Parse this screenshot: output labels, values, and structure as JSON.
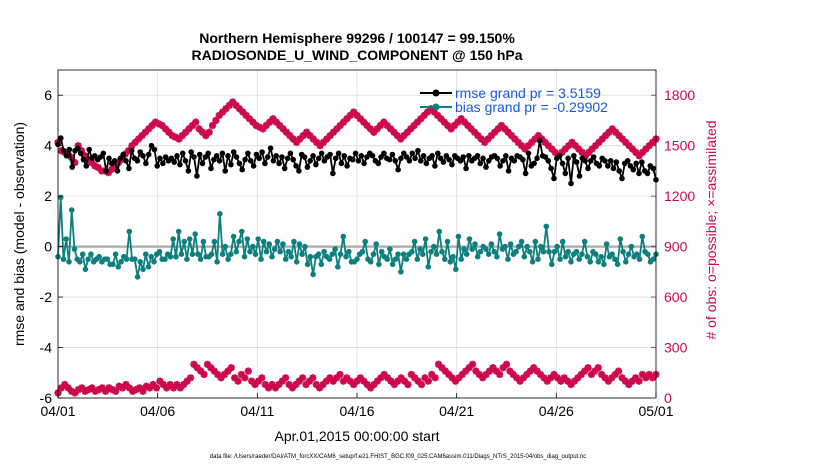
{
  "chart_data": {
    "type": "line",
    "title": "Northern Hemisphere 99296 / 100147 = 99.150%",
    "subtitle": "RADIOSONDE_U_WIND_COMPONENT @ 150 hPa",
    "xlabel": "Apr.01,2015 00:00:00 start",
    "ylabel": "rmse and bias (model - observation)",
    "ylabel_right": "# of obs: o=possible; ×=assimilated",
    "ylim": [
      -6,
      7
    ],
    "ylim_right": [
      0,
      1950
    ],
    "xlim": [
      0,
      30
    ],
    "yticks": [
      "-6",
      "-4",
      "-2",
      "0",
      "2",
      "4",
      "6"
    ],
    "yticks_right": [
      "0",
      "300",
      "600",
      "900",
      "1200",
      "1500",
      "1800"
    ],
    "xticks": [
      "04/01",
      "04/06",
      "04/11",
      "04/16",
      "04/21",
      "04/26",
      "05/01"
    ],
    "legend": [
      {
        "label": "rmse grand pr = 3.5159",
        "color": "#000000"
      },
      {
        "label": "bias grand pr = -0.29902",
        "color": "#0e7f7f"
      }
    ],
    "colors": {
      "rmse": "#000000",
      "bias": "#0e7f7f",
      "obs": "#cc0a4d",
      "zero_line": "#aaaaaa"
    },
    "series": [
      {
        "name": "rmse",
        "values": [
          4.05,
          4.3,
          3.8,
          3.6,
          3.85,
          3.15,
          3.8,
          3.9,
          3.7,
          3.45,
          3.2,
          3.85,
          3.5,
          3.6,
          3.45,
          3.55,
          3.7,
          3.0,
          3.5,
          3.3,
          3.4,
          3.0,
          3.5,
          3.65,
          3.4,
          3.1,
          3.8,
          3.5,
          3.4,
          3.75,
          3.6,
          3.3,
          3.65,
          4.0,
          3.85,
          3.2,
          3.5,
          3.3,
          3.55,
          3.4,
          3.5,
          3.35,
          3.6,
          3.25,
          3.7,
          3.4,
          3.0,
          3.75,
          3.55,
          2.8,
          3.65,
          3.3,
          3.55,
          3.7,
          3.1,
          3.45,
          3.6,
          3.4,
          3.7,
          3.0,
          3.6,
          3.25,
          3.75,
          3.55,
          3.3,
          3.05,
          3.45,
          3.7,
          3.4,
          3.2,
          3.65,
          3.5,
          3.75,
          3.3,
          3.55,
          3.9,
          3.4,
          3.6,
          3.3,
          3.55,
          3.1,
          3.5,
          3.7,
          3.45,
          3.2,
          3.0,
          3.65,
          3.55,
          3.15,
          3.4,
          3.6,
          3.25,
          3.5,
          3.7,
          3.4,
          3.55,
          3.65,
          2.9,
          3.5,
          3.7,
          3.3,
          3.6,
          3.2,
          3.5,
          3.45,
          3.7,
          3.4,
          3.6,
          3.3,
          3.55,
          3.7,
          3.6,
          3.4,
          3.3,
          3.55,
          3.7,
          3.5,
          3.45,
          3.65,
          3.4,
          3.05,
          3.5,
          3.7,
          3.55,
          3.4,
          3.7,
          3.5,
          3.8,
          3.4,
          3.6,
          3.3,
          3.5,
          3.6,
          3.2,
          3.7,
          3.5,
          3.35,
          3.6,
          3.45,
          3.25,
          3.6,
          3.5,
          3.4,
          3.55,
          3.1,
          3.6,
          3.4,
          3.5,
          3.6,
          3.3,
          3.5,
          3.15,
          3.4,
          3.55,
          3.6,
          3.5,
          3.2,
          3.4,
          3.6,
          3.0,
          3.5,
          3.4,
          3.6,
          3.55,
          3.45,
          2.9,
          3.7,
          3.2,
          3.3,
          3.5,
          4.2,
          3.6,
          3.55,
          3.4,
          3.1,
          2.7,
          3.5,
          3.6,
          3.3,
          2.9,
          3.5,
          2.5,
          3.6,
          3.35,
          2.8,
          3.5,
          3.4,
          3.1,
          3.4,
          3.55,
          3.3,
          3.2,
          3.5,
          3.4,
          3.2,
          3.4,
          3.1,
          3.35,
          3.0,
          2.7,
          3.3,
          3.4,
          3.2,
          3.05,
          3.3,
          2.9,
          3.35,
          3.0,
          2.9,
          3.2,
          3.1,
          2.65
        ]
      },
      {
        "name": "bias",
        "values": [
          -0.4,
          1.95,
          -0.5,
          0.3,
          -0.6,
          1.45,
          -0.1,
          -0.5,
          -0.6,
          -0.3,
          -0.9,
          -0.5,
          -0.3,
          -0.6,
          -0.5,
          -0.4,
          -0.6,
          -0.5,
          -0.5,
          -0.7,
          -0.7,
          -0.3,
          -0.8,
          -0.6,
          -0.4,
          -0.5,
          0.6,
          -0.5,
          -0.5,
          -1.2,
          -0.6,
          -0.9,
          -0.3,
          -0.8,
          -0.4,
          -0.6,
          -0.3,
          -0.2,
          -0.5,
          -0.5,
          -0.3,
          -0.4,
          0.3,
          -0.4,
          0.6,
          -0.3,
          0.2,
          -0.5,
          0.3,
          -0.3,
          0.5,
          -0.3,
          -0.5,
          0.2,
          -0.4,
          -0.4,
          -0.3,
          0.2,
          -0.6,
          1.3,
          -0.3,
          0.0,
          -0.5,
          -0.3,
          0.4,
          -0.2,
          0.2,
          0.6,
          -0.4,
          0.3,
          -0.2,
          0.0,
          -0.3,
          0.3,
          -0.5,
          0.2,
          -0.2,
          0.1,
          -0.4,
          -0.1,
          0.2,
          -0.2,
          0.1,
          -0.5,
          -0.2,
          -0.4,
          0.2,
          -0.6,
          0.1,
          -0.3,
          0.0,
          -0.7,
          -0.4,
          -1.1,
          -0.4,
          -0.3,
          -0.7,
          -0.2,
          -0.4,
          -0.5,
          -0.3,
          -0.1,
          -0.8,
          -0.3,
          0.4,
          -0.4,
          -0.2,
          -0.6,
          -0.6,
          -0.5,
          -0.3,
          -0.2,
          0.2,
          -0.5,
          -0.6,
          -0.3,
          0.1,
          -0.7,
          -0.2,
          -0.4,
          -0.5,
          -0.1,
          -0.7,
          -0.5,
          -0.3,
          -1.0,
          -0.3,
          -0.5,
          -0.3,
          -0.2,
          0.2,
          -0.5,
          -0.1,
          -0.3,
          0.3,
          -0.8,
          -0.2,
          0.0,
          -0.3,
          0.6,
          -0.2,
          -0.5,
          0.2,
          -0.6,
          -0.4,
          -0.9,
          0.4,
          -0.5,
          -0.1,
          -0.3,
          0.3,
          -0.1,
          0.1,
          -0.4,
          -0.2,
          0.0,
          -0.1,
          -0.3,
          0.1,
          -0.2,
          -0.4,
          0.5,
          -0.1,
          0.0,
          -0.5,
          0.1,
          -0.3,
          -0.2,
          0.0,
          0.2,
          -0.4,
          0.0,
          -0.2,
          -0.6,
          0.2,
          -0.5,
          0.0,
          -0.2,
          0.8,
          -0.2,
          -0.7,
          -0.2,
          0.0,
          -0.5,
          0.2,
          -0.4,
          -0.2,
          -0.6,
          -0.3,
          -0.2,
          -0.5,
          -0.3,
          0.2,
          -0.4,
          -0.6,
          -0.2,
          -0.3,
          -0.6,
          -0.4,
          -0.7,
          0.1,
          -0.4,
          -0.3,
          -0.5,
          -0.7,
          0.3,
          -0.2,
          -0.6,
          -0.3,
          0.0,
          -0.4,
          -0.3,
          -0.5,
          0.4,
          -0.2,
          -0.3,
          -0.6,
          -0.5,
          -0.3
        ]
      },
      {
        "name": "obs_possible",
        "values": [
          30,
          60,
          80,
          60,
          40,
          30,
          50,
          60,
          40,
          50,
          60,
          40,
          50,
          60,
          40,
          60,
          50,
          40,
          70,
          60,
          80,
          60,
          40,
          50,
          60,
          40,
          70,
          60,
          80,
          60,
          100,
          80,
          60,
          80,
          60,
          80,
          60,
          80,
          100,
          120,
          200,
          180,
          160,
          140,
          200,
          180,
          160,
          140,
          120,
          140,
          160,
          180,
          120,
          100,
          140,
          120,
          160,
          100,
          80,
          100,
          120,
          80,
          60,
          80,
          60,
          80,
          100,
          120,
          80,
          60,
          80,
          100,
          120,
          80,
          100,
          120,
          80,
          60,
          80,
          100,
          120,
          100,
          120,
          140,
          100,
          120,
          100,
          80,
          100,
          120,
          100,
          80,
          60,
          80,
          100,
          120,
          140,
          120,
          100,
          80,
          100,
          120,
          100,
          80,
          140,
          120,
          100,
          80,
          120,
          100,
          140,
          120,
          200,
          180,
          160,
          140,
          120,
          100,
          120,
          140,
          160,
          180,
          200,
          160,
          140,
          120,
          140,
          160,
          180,
          160,
          140,
          180,
          200,
          160,
          140,
          120,
          100,
          120,
          140,
          160,
          180,
          160,
          140,
          120,
          100,
          120,
          140,
          120,
          100,
          120,
          100,
          80,
          100,
          120,
          140,
          160,
          180,
          140,
          160,
          180,
          140,
          120,
          100,
          120,
          140,
          160,
          120,
          100,
          80,
          100,
          120,
          100,
          140,
          120,
          140,
          120,
          140
        ]
      },
      {
        "name": "obs_assimilated",
        "values": [
          1520,
          1470,
          1460,
          1450,
          1430,
          1400,
          1500,
          1470,
          1440,
          1420,
          1400,
          1380,
          1370,
          1350,
          1350,
          1340,
          1360,
          1380,
          1400,
          1420,
          1450,
          1470,
          1500,
          1520,
          1540,
          1560,
          1580,
          1600,
          1620,
          1640,
          1630,
          1620,
          1600,
          1580,
          1560,
          1550,
          1540,
          1560,
          1580,
          1600,
          1620,
          1640,
          1600,
          1580,
          1560,
          1580,
          1620,
          1650,
          1680,
          1700,
          1720,
          1740,
          1760,
          1740,
          1720,
          1700,
          1680,
          1660,
          1640,
          1620,
          1610,
          1600,
          1620,
          1640,
          1660,
          1640,
          1620,
          1600,
          1580,
          1560,
          1540,
          1520,
          1540,
          1560,
          1580,
          1560,
          1540,
          1520,
          1500,
          1520,
          1540,
          1560,
          1580,
          1600,
          1620,
          1640,
          1660,
          1680,
          1700,
          1680,
          1660,
          1640,
          1620,
          1600,
          1580,
          1600,
          1620,
          1640,
          1620,
          1600,
          1580,
          1560,
          1540,
          1560,
          1580,
          1600,
          1620,
          1640,
          1660,
          1680,
          1700,
          1720,
          1700,
          1680,
          1660,
          1640,
          1620,
          1600,
          1620,
          1640,
          1660,
          1640,
          1620,
          1600,
          1580,
          1560,
          1540,
          1520,
          1540,
          1560,
          1580,
          1600,
          1620,
          1600,
          1580,
          1560,
          1540,
          1520,
          1500,
          1480,
          1500,
          1520,
          1540,
          1560,
          1540,
          1520,
          1500,
          1480,
          1460,
          1440,
          1460,
          1480,
          1500,
          1520,
          1500,
          1480,
          1460,
          1440,
          1460,
          1480,
          1500,
          1520,
          1540,
          1560,
          1580,
          1600,
          1580,
          1560,
          1540,
          1520,
          1500,
          1480,
          1460,
          1440,
          1460,
          1480,
          1500,
          1520,
          1540
        ]
      }
    ]
  },
  "footer": "data file: /Users/raeder/DAI/ATM_forcXX/CAM6_setup/f.e21.FHIST_BGC.f09_025.CAM6assim.011/Diags_NTrS_2015-04/obs_diag_output.nc"
}
